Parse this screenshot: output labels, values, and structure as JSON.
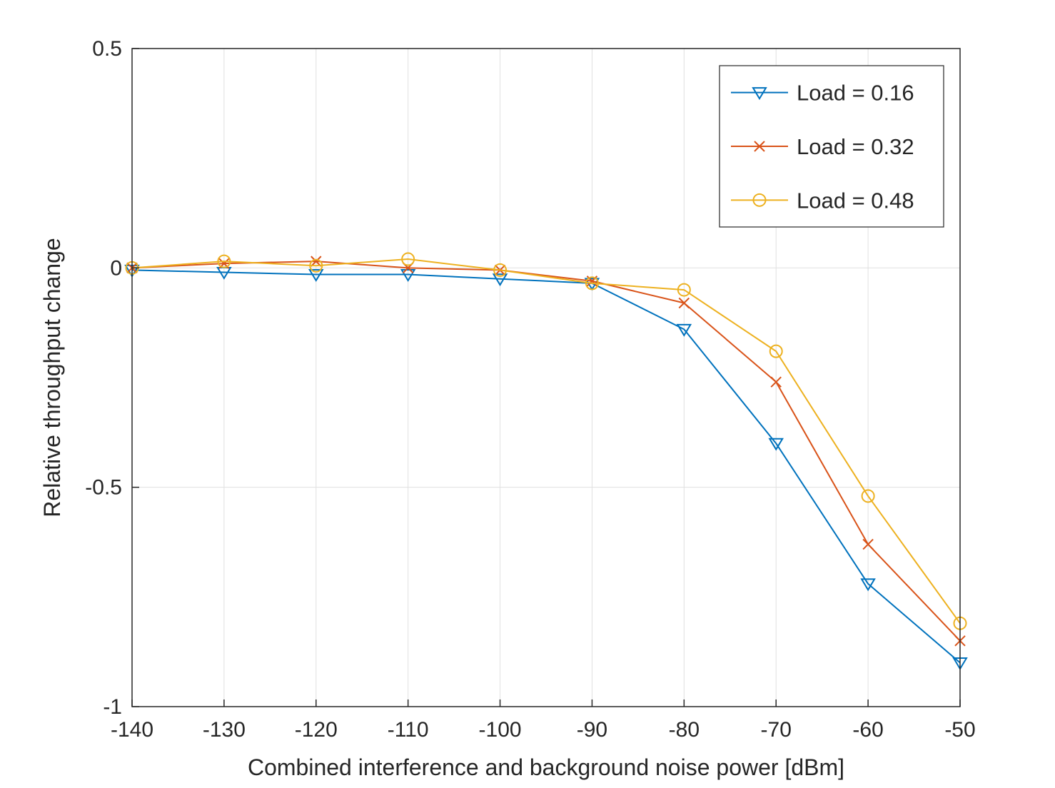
{
  "chart_data": {
    "type": "line",
    "title": "",
    "xlabel": "Combined interference and background noise power [dBm]",
    "ylabel": "Relative throughput change",
    "xlim": [
      -140,
      -50
    ],
    "ylim": [
      -1,
      0.5
    ],
    "xticks": [
      -140,
      -130,
      -120,
      -110,
      -100,
      -90,
      -80,
      -70,
      -60,
      -50
    ],
    "xtick_labels": [
      "-140",
      "-130",
      "-120",
      "-110",
      "-100",
      "-90",
      "-80",
      "-70",
      "-60",
      "-50"
    ],
    "yticks": [
      -1,
      -0.5,
      0,
      0.5
    ],
    "ytick_labels": [
      "-1",
      "-0.5",
      "0",
      "0.5"
    ],
    "grid": true,
    "legend_position": "top-right",
    "x": [
      -140,
      -130,
      -120,
      -110,
      -100,
      -90,
      -80,
      -70,
      -60,
      -50
    ],
    "series": [
      {
        "name": "Load = 0.16",
        "color": "#0072BD",
        "marker": "triangle-down",
        "values": [
          -0.005,
          -0.01,
          -0.015,
          -0.015,
          -0.025,
          -0.035,
          -0.14,
          -0.4,
          -0.72,
          -0.9
        ]
      },
      {
        "name": "Load = 0.32",
        "color": "#D95319",
        "marker": "x",
        "values": [
          0,
          0.01,
          0.015,
          0,
          -0.005,
          -0.03,
          -0.08,
          -0.26,
          -0.63,
          -0.85
        ]
      },
      {
        "name": "Load = 0.48",
        "color": "#EDB120",
        "marker": "circle",
        "values": [
          0,
          0.015,
          0.005,
          0.02,
          -0.005,
          -0.035,
          -0.05,
          -0.19,
          -0.52,
          -0.81
        ]
      }
    ],
    "colors": {
      "grid": "#E0E0E0",
      "axis": "#262626",
      "background": "#FFFFFF"
    }
  }
}
